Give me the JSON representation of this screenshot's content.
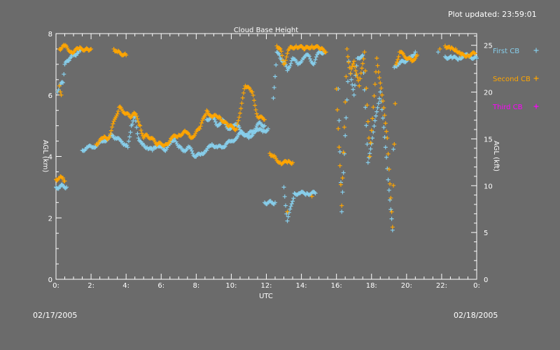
{
  "page": {
    "updated": "Plot updated: 23:59:01",
    "date_start": "02/17/2005",
    "date_end": "02/18/2005"
  },
  "chart_data": {
    "type": "scatter",
    "title": "Cloud Base Height",
    "xlabel": "UTC",
    "ylabel_left": "AGL (km)",
    "ylabel_right": "AGL (kft)",
    "xlim": [
      0,
      24
    ],
    "ylim": [
      0,
      8
    ],
    "ylim_right": [
      0,
      26.25
    ],
    "x_ticks": [
      0,
      2,
      4,
      6,
      8,
      10,
      12,
      14,
      16,
      18,
      20,
      22,
      24
    ],
    "x_tick_labels": [
      "0:",
      "2:",
      "4:",
      "6:",
      "8:",
      "10:",
      "12:",
      "14:",
      "16:",
      "18:",
      "20:",
      "22:",
      "0:"
    ],
    "y_ticks_left": [
      0,
      2,
      4,
      6,
      8
    ],
    "y_ticks_right": [
      0,
      5,
      10,
      15,
      20,
      25
    ],
    "grid": false,
    "legend_position": "right",
    "marker": "plus",
    "series": [
      {
        "name": "First CB",
        "color": "#87ceeb",
        "segments": [
          [
            [
              0.0,
              3.0
            ],
            [
              0.2,
              3.0
            ],
            [
              0.4,
              3.05
            ],
            [
              0.6,
              3.0
            ]
          ],
          [
            [
              0.1,
              6.1
            ],
            [
              0.2,
              6.3
            ],
            [
              0.4,
              6.4
            ],
            [
              0.5,
              7.0
            ],
            [
              0.6,
              7.1
            ],
            [
              0.8,
              7.2
            ],
            [
              1.0,
              7.3
            ],
            [
              1.2,
              7.35
            ],
            [
              1.4,
              7.45
            ]
          ],
          [
            [
              1.5,
              4.2
            ],
            [
              1.8,
              4.3
            ],
            [
              2.1,
              4.3
            ],
            [
              2.4,
              4.4
            ],
            [
              2.7,
              4.5
            ],
            [
              3.0,
              4.6
            ],
            [
              3.2,
              4.7
            ],
            [
              3.4,
              4.6
            ],
            [
              3.7,
              4.5
            ],
            [
              3.9,
              4.4
            ],
            [
              4.1,
              4.3
            ],
            [
              4.3,
              5.0
            ],
            [
              4.5,
              5.3
            ],
            [
              4.7,
              4.6
            ],
            [
              4.9,
              4.4
            ],
            [
              5.2,
              4.3
            ],
            [
              5.5,
              4.2
            ],
            [
              5.8,
              4.4
            ],
            [
              6.0,
              4.3
            ],
            [
              6.2,
              4.2
            ],
            [
              6.5,
              4.4
            ],
            [
              6.8,
              4.6
            ],
            [
              7.0,
              4.3
            ],
            [
              7.3,
              4.2
            ],
            [
              7.6,
              4.3
            ],
            [
              7.8,
              4.1
            ],
            [
              8.0,
              4.0
            ],
            [
              8.3,
              4.1
            ],
            [
              8.6,
              4.2
            ],
            [
              8.9,
              4.4
            ],
            [
              9.2,
              4.3
            ],
            [
              9.5,
              4.3
            ],
            [
              9.7,
              4.4
            ],
            [
              10.0,
              4.5
            ],
            [
              10.3,
              4.6
            ],
            [
              10.6,
              4.8
            ],
            [
              10.9,
              4.7
            ],
            [
              11.2,
              4.8
            ],
            [
              11.5,
              4.9
            ],
            [
              11.8,
              4.8
            ],
            [
              12.1,
              4.9
            ]
          ],
          [
            [
              8.6,
              5.2
            ],
            [
              8.9,
              5.3
            ],
            [
              9.2,
              5.0
            ],
            [
              9.5,
              5.2
            ],
            [
              9.8,
              4.9
            ],
            [
              10.1,
              5.0
            ],
            [
              10.4,
              5.0
            ],
            [
              10.7,
              4.7
            ],
            [
              11.0,
              4.6
            ],
            [
              11.3,
              4.8
            ],
            [
              11.6,
              5.1
            ],
            [
              11.9,
              5.0
            ]
          ],
          [
            [
              11.9,
              2.5
            ],
            [
              12.1,
              2.5
            ],
            [
              12.3,
              2.5
            ],
            [
              12.5,
              2.5
            ]
          ],
          [
            [
              12.4,
              5.9
            ],
            [
              12.6,
              7.4
            ],
            [
              12.8,
              7.2
            ],
            [
              13.0,
              7.1
            ],
            [
              13.2,
              6.8
            ],
            [
              13.5,
              7.2
            ],
            [
              13.8,
              7.0
            ],
            [
              14.1,
              7.2
            ],
            [
              14.4,
              7.3
            ],
            [
              14.7,
              7.0
            ],
            [
              15.0,
              7.4
            ],
            [
              15.3,
              7.4
            ]
          ],
          [
            [
              13.0,
              3.0
            ],
            [
              13.2,
              1.9
            ],
            [
              13.6,
              2.8
            ],
            [
              13.9,
              2.8
            ],
            [
              14.3,
              2.8
            ],
            [
              14.8,
              2.8
            ]
          ],
          [
            [
              16.1,
              6.2
            ],
            [
              16.3,
              2.2
            ],
            [
              16.7,
              7.1
            ],
            [
              17.0,
              6.0
            ],
            [
              17.2,
              7.2
            ],
            [
              17.5,
              7.3
            ],
            [
              17.8,
              3.8
            ],
            [
              18.5,
              6.1
            ],
            [
              18.8,
              4.3
            ],
            [
              19.2,
              1.6
            ],
            [
              19.3,
              6.9
            ],
            [
              19.5,
              7.0
            ],
            [
              20.2,
              7.2
            ],
            [
              20.5,
              7.4
            ],
            [
              21.8,
              7.4
            ]
          ],
          [
            [
              22.2,
              7.25
            ],
            [
              22.6,
              7.2
            ],
            [
              23.0,
              7.2
            ],
            [
              23.3,
              7.3
            ],
            [
              23.6,
              7.25
            ],
            [
              24.0,
              7.2
            ]
          ]
        ]
      },
      {
        "name": "Second CB",
        "color": "#ffa500",
        "segments": [
          [
            [
              0.0,
              3.25
            ],
            [
              0.2,
              3.3
            ],
            [
              0.4,
              3.3
            ],
            [
              0.5,
              3.2
            ]
          ],
          [
            [
              0.2,
              7.5
            ],
            [
              0.5,
              7.6
            ],
            [
              0.9,
              7.4
            ],
            [
              1.3,
              7.5
            ],
            [
              1.8,
              7.5
            ],
            [
              2.0,
              7.5
            ]
          ],
          [
            [
              0.2,
              6.3
            ],
            [
              0.3,
              6.0
            ]
          ],
          [
            [
              3.3,
              7.5
            ],
            [
              3.5,
              7.4
            ],
            [
              4.0,
              7.3
            ]
          ],
          [
            [
              2.3,
              4.4
            ],
            [
              2.7,
              4.6
            ],
            [
              3.0,
              4.6
            ],
            [
              3.6,
              5.6
            ],
            [
              4.2,
              5.3
            ],
            [
              4.5,
              5.4
            ],
            [
              4.8,
              5.0
            ],
            [
              5.0,
              4.6
            ],
            [
              5.2,
              4.7
            ],
            [
              5.8,
              4.4
            ],
            [
              6.3,
              4.4
            ],
            [
              6.6,
              4.6
            ],
            [
              7.0,
              4.7
            ],
            [
              7.4,
              4.8
            ],
            [
              7.7,
              4.6
            ],
            [
              8.2,
              4.9
            ],
            [
              8.6,
              5.5
            ],
            [
              8.9,
              5.3
            ],
            [
              9.3,
              5.3
            ],
            [
              9.8,
              5.0
            ],
            [
              10.3,
              4.9
            ],
            [
              10.8,
              6.3
            ],
            [
              11.2,
              6.1
            ],
            [
              11.5,
              5.3
            ],
            [
              11.9,
              5.2
            ]
          ],
          [
            [
              12.2,
              4.1
            ],
            [
              12.4,
              4.0
            ],
            [
              12.8,
              3.8
            ],
            [
              13.2,
              3.8
            ],
            [
              13.5,
              3.8
            ],
            [
              13.2,
              2.2
            ],
            [
              14.6,
              2.7
            ]
          ],
          [
            [
              12.6,
              7.6
            ],
            [
              12.8,
              7.5
            ],
            [
              13.0,
              7.0
            ],
            [
              13.3,
              7.5
            ],
            [
              13.7,
              7.6
            ],
            [
              14.2,
              7.5
            ],
            [
              14.6,
              7.6
            ],
            [
              15.1,
              7.5
            ],
            [
              15.4,
              7.4
            ]
          ],
          [
            [
              16.0,
              6.2
            ],
            [
              16.3,
              2.4
            ],
            [
              16.6,
              7.5
            ],
            [
              16.8,
              6.7
            ],
            [
              17.0,
              7.1
            ],
            [
              17.3,
              6.3
            ],
            [
              17.6,
              7.4
            ],
            [
              17.9,
              4.0
            ],
            [
              18.3,
              7.2
            ],
            [
              18.6,
              6.0
            ],
            [
              18.9,
              4.6
            ],
            [
              19.2,
              1.7
            ],
            [
              19.4,
              7.0
            ],
            [
              19.6,
              7.4
            ],
            [
              20.3,
              7.1
            ],
            [
              20.6,
              7.3
            ],
            [
              21.9,
              7.5
            ]
          ],
          [
            [
              22.2,
              7.6
            ],
            [
              22.5,
              7.5
            ],
            [
              22.8,
              7.5
            ],
            [
              23.1,
              7.3
            ],
            [
              23.5,
              7.3
            ],
            [
              23.9,
              7.35
            ]
          ]
        ]
      },
      {
        "name": "Third CB",
        "color": "#ff00ff",
        "segments": []
      }
    ]
  }
}
